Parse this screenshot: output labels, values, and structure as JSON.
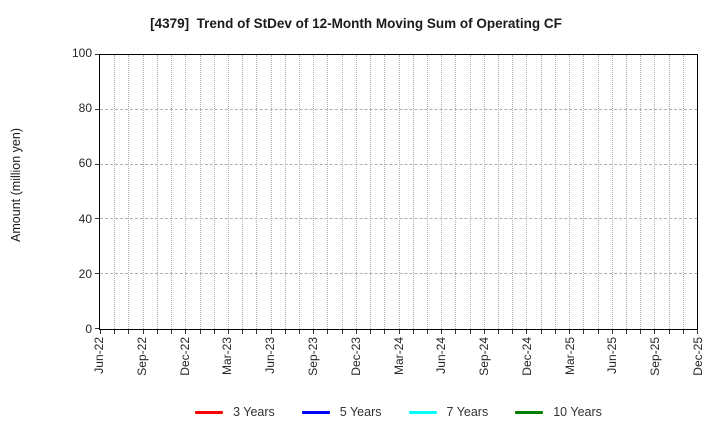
{
  "chart_data": {
    "type": "line",
    "title": "[4379]  Trend of StDev of 12-Month Moving Sum of Operating CF",
    "xlabel": "",
    "ylabel": "Amount (million yen)",
    "ylim": [
      0,
      100
    ],
    "yticks": [
      0,
      20,
      40,
      60,
      80,
      100
    ],
    "x_tick_labels": [
      "Jun-22",
      "Sep-22",
      "Dec-22",
      "Mar-23",
      "Jun-23",
      "Sep-23",
      "Dec-23",
      "Mar-24",
      "Jun-24",
      "Sep-24",
      "Dec-24",
      "Mar-25",
      "Jun-25",
      "Sep-25",
      "Dec-25"
    ],
    "x_minor_ticks_per_major_interval": 3,
    "grid": true,
    "grid_style": {
      "horizontal": "dashed",
      "vertical": "dotted",
      "color": "#b0b0b0"
    },
    "legend_position": "bottom",
    "series_visible": false,
    "series": [
      {
        "name": "3 Years",
        "color": "#ff0000",
        "values": []
      },
      {
        "name": "5 Years",
        "color": "#0000ff",
        "values": []
      },
      {
        "name": "7 Years",
        "color": "#00ffff",
        "values": []
      },
      {
        "name": "10 Years",
        "color": "#008000",
        "values": []
      }
    ]
  }
}
